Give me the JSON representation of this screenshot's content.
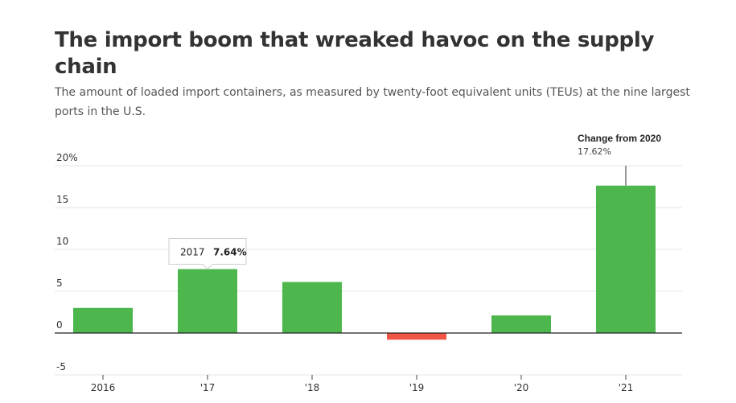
{
  "header": {
    "title": "The import boom that wreaked havoc on the supply chain",
    "subtitle": "The amount of loaded import containers, as measured by twenty-foot equivalent units (TEUs) at the nine largest ports in the U.S."
  },
  "chart_data": {
    "type": "bar",
    "categories": [
      "2016",
      "'17",
      "'18",
      "'19",
      "'20",
      "'21"
    ],
    "values": [
      3.0,
      7.64,
      6.1,
      -0.8,
      2.1,
      17.62
    ],
    "ylim": [
      -5,
      20
    ],
    "yticks": [
      {
        "value": 20,
        "label": "20%"
      },
      {
        "value": 15,
        "label": "15"
      },
      {
        "value": 10,
        "label": "10"
      },
      {
        "value": 5,
        "label": "5"
      },
      {
        "value": 0,
        "label": "0"
      },
      {
        "value": -5,
        "label": "-5"
      }
    ],
    "grid": true,
    "colors": {
      "positive": "#4db74d",
      "negative": "#f05545",
      "grid": "#e4e4e4",
      "axis": "#222222"
    },
    "tooltip": {
      "category": "2017",
      "value_label": "7.64%"
    },
    "annotation": {
      "title": "Change from 2020",
      "value_label": "17.62%"
    }
  }
}
